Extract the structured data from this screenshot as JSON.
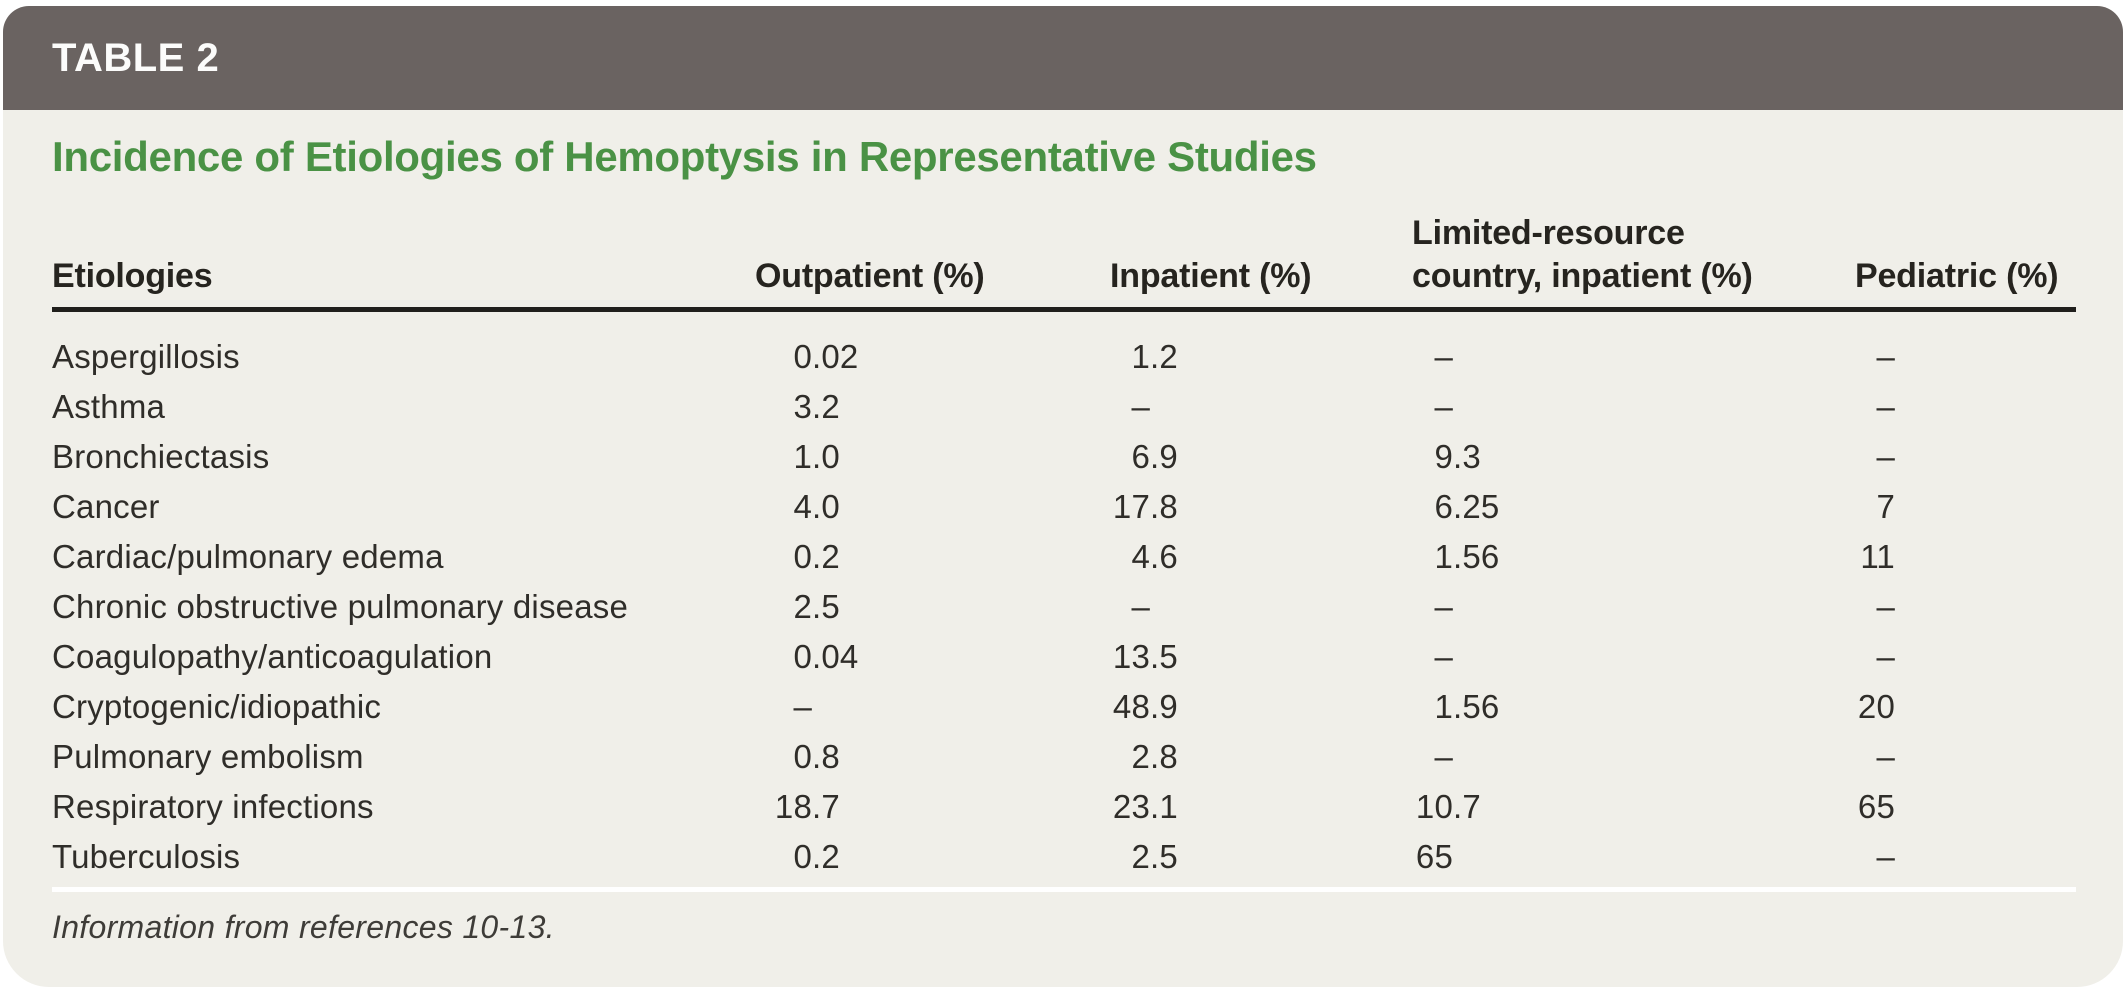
{
  "header": {
    "label": "TABLE 2"
  },
  "title": "Incidence of Etiologies of Hemoptysis in Representative Studies",
  "columns": [
    "Etiologies",
    "Outpatient (%)",
    "Inpatient (%)",
    {
      "line1": "Limited-resource",
      "line2": "country, inpatient (%)",
      "full": "Limited-resource country, inpatient (%)"
    },
    "Pediatric (%)"
  ],
  "rows": [
    {
      "etiology": "Aspergillosis",
      "outpatient": "0.02",
      "inpatient": "1.2",
      "limited_resource": "–",
      "pediatric": "–"
    },
    {
      "etiology": "Asthma",
      "outpatient": "3.2",
      "inpatient": "–",
      "limited_resource": "–",
      "pediatric": "–"
    },
    {
      "etiology": "Bronchiectasis",
      "outpatient": "1.0",
      "inpatient": "6.9",
      "limited_resource": "9.3",
      "pediatric": "–"
    },
    {
      "etiology": "Cancer",
      "outpatient": "4.0",
      "inpatient": "17.8",
      "limited_resource": "6.25",
      "pediatric": "7"
    },
    {
      "etiology": "Cardiac/pulmonary edema",
      "outpatient": "0.2",
      "inpatient": "4.6",
      "limited_resource": "1.56",
      "pediatric": "11"
    },
    {
      "etiology": "Chronic obstructive pulmonary disease",
      "outpatient": "2.5",
      "inpatient": "–",
      "limited_resource": "–",
      "pediatric": "–"
    },
    {
      "etiology": "Coagulopathy/anticoagulation",
      "outpatient": "0.04",
      "inpatient": "13.5",
      "limited_resource": "–",
      "pediatric": "–"
    },
    {
      "etiology": "Cryptogenic/idiopathic",
      "outpatient": "–",
      "inpatient": "48.9",
      "limited_resource": "1.56",
      "pediatric": "20"
    },
    {
      "etiology": "Pulmonary embolism",
      "outpatient": "0.8",
      "inpatient": "2.8",
      "limited_resource": "–",
      "pediatric": "–"
    },
    {
      "etiology": "Respiratory infections",
      "outpatient": "18.7",
      "inpatient": "23.1",
      "limited_resource": "10.7",
      "pediatric": "65"
    },
    {
      "etiology": "Tuberculosis",
      "outpatient": "0.2",
      "inpatient": "2.5",
      "limited_resource": "65",
      "pediatric": "–"
    }
  ],
  "footnote": "Information from references 10-13.",
  "colors": {
    "header_bar": "#6A6361",
    "card_background": "#F0EFE9",
    "title_green": "#4A9245",
    "body_text": "#2F2D29",
    "header_rule": "#201F1C",
    "footnote_divider": "#FFFFFF"
  }
}
